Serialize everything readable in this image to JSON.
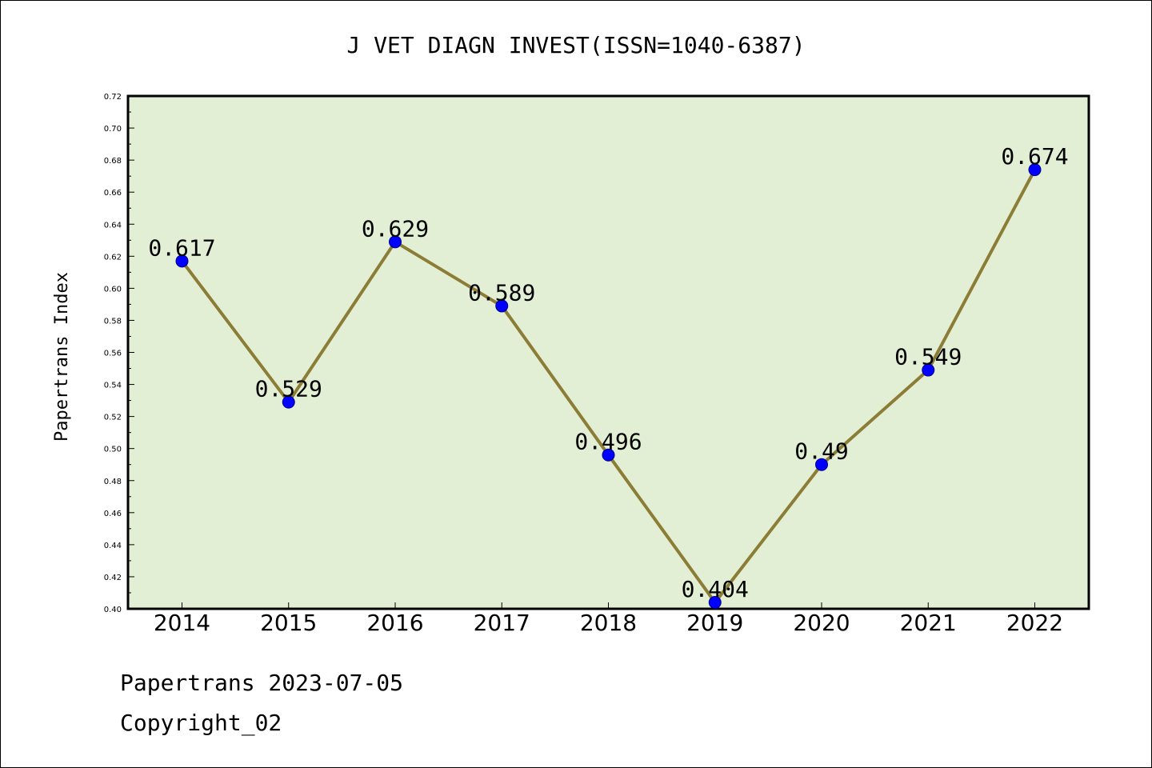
{
  "chart_data": {
    "type": "line",
    "title": "J VET DIAGN INVEST(ISSN=1040-6387)",
    "xlabel": "",
    "ylabel": "Papertrans Index",
    "categories": [
      "2014",
      "2015",
      "2016",
      "2017",
      "2018",
      "2019",
      "2020",
      "2021",
      "2022"
    ],
    "values": [
      0.617,
      0.529,
      0.629,
      0.589,
      0.496,
      0.404,
      0.49,
      0.549,
      0.674
    ],
    "value_labels": [
      "0.617",
      "0.529",
      "0.629",
      "0.589",
      "0.496",
      "0.404",
      "0.49",
      "0.549",
      "0.674"
    ],
    "ylim": [
      0.4,
      0.72
    ],
    "yticks": [
      "0.40",
      "0.42",
      "0.44",
      "0.46",
      "0.48",
      "0.50",
      "0.52",
      "0.54",
      "0.56",
      "0.58",
      "0.60",
      "0.62",
      "0.64",
      "0.66",
      "0.68",
      "0.70",
      "0.72"
    ],
    "grid": false,
    "colors": {
      "plot_background": "#e2efd5",
      "line": "#8b7d35",
      "marker": "#0000ff"
    }
  },
  "footer": {
    "line1": "Papertrans 2023-07-05",
    "line2": "Copyright_02"
  }
}
